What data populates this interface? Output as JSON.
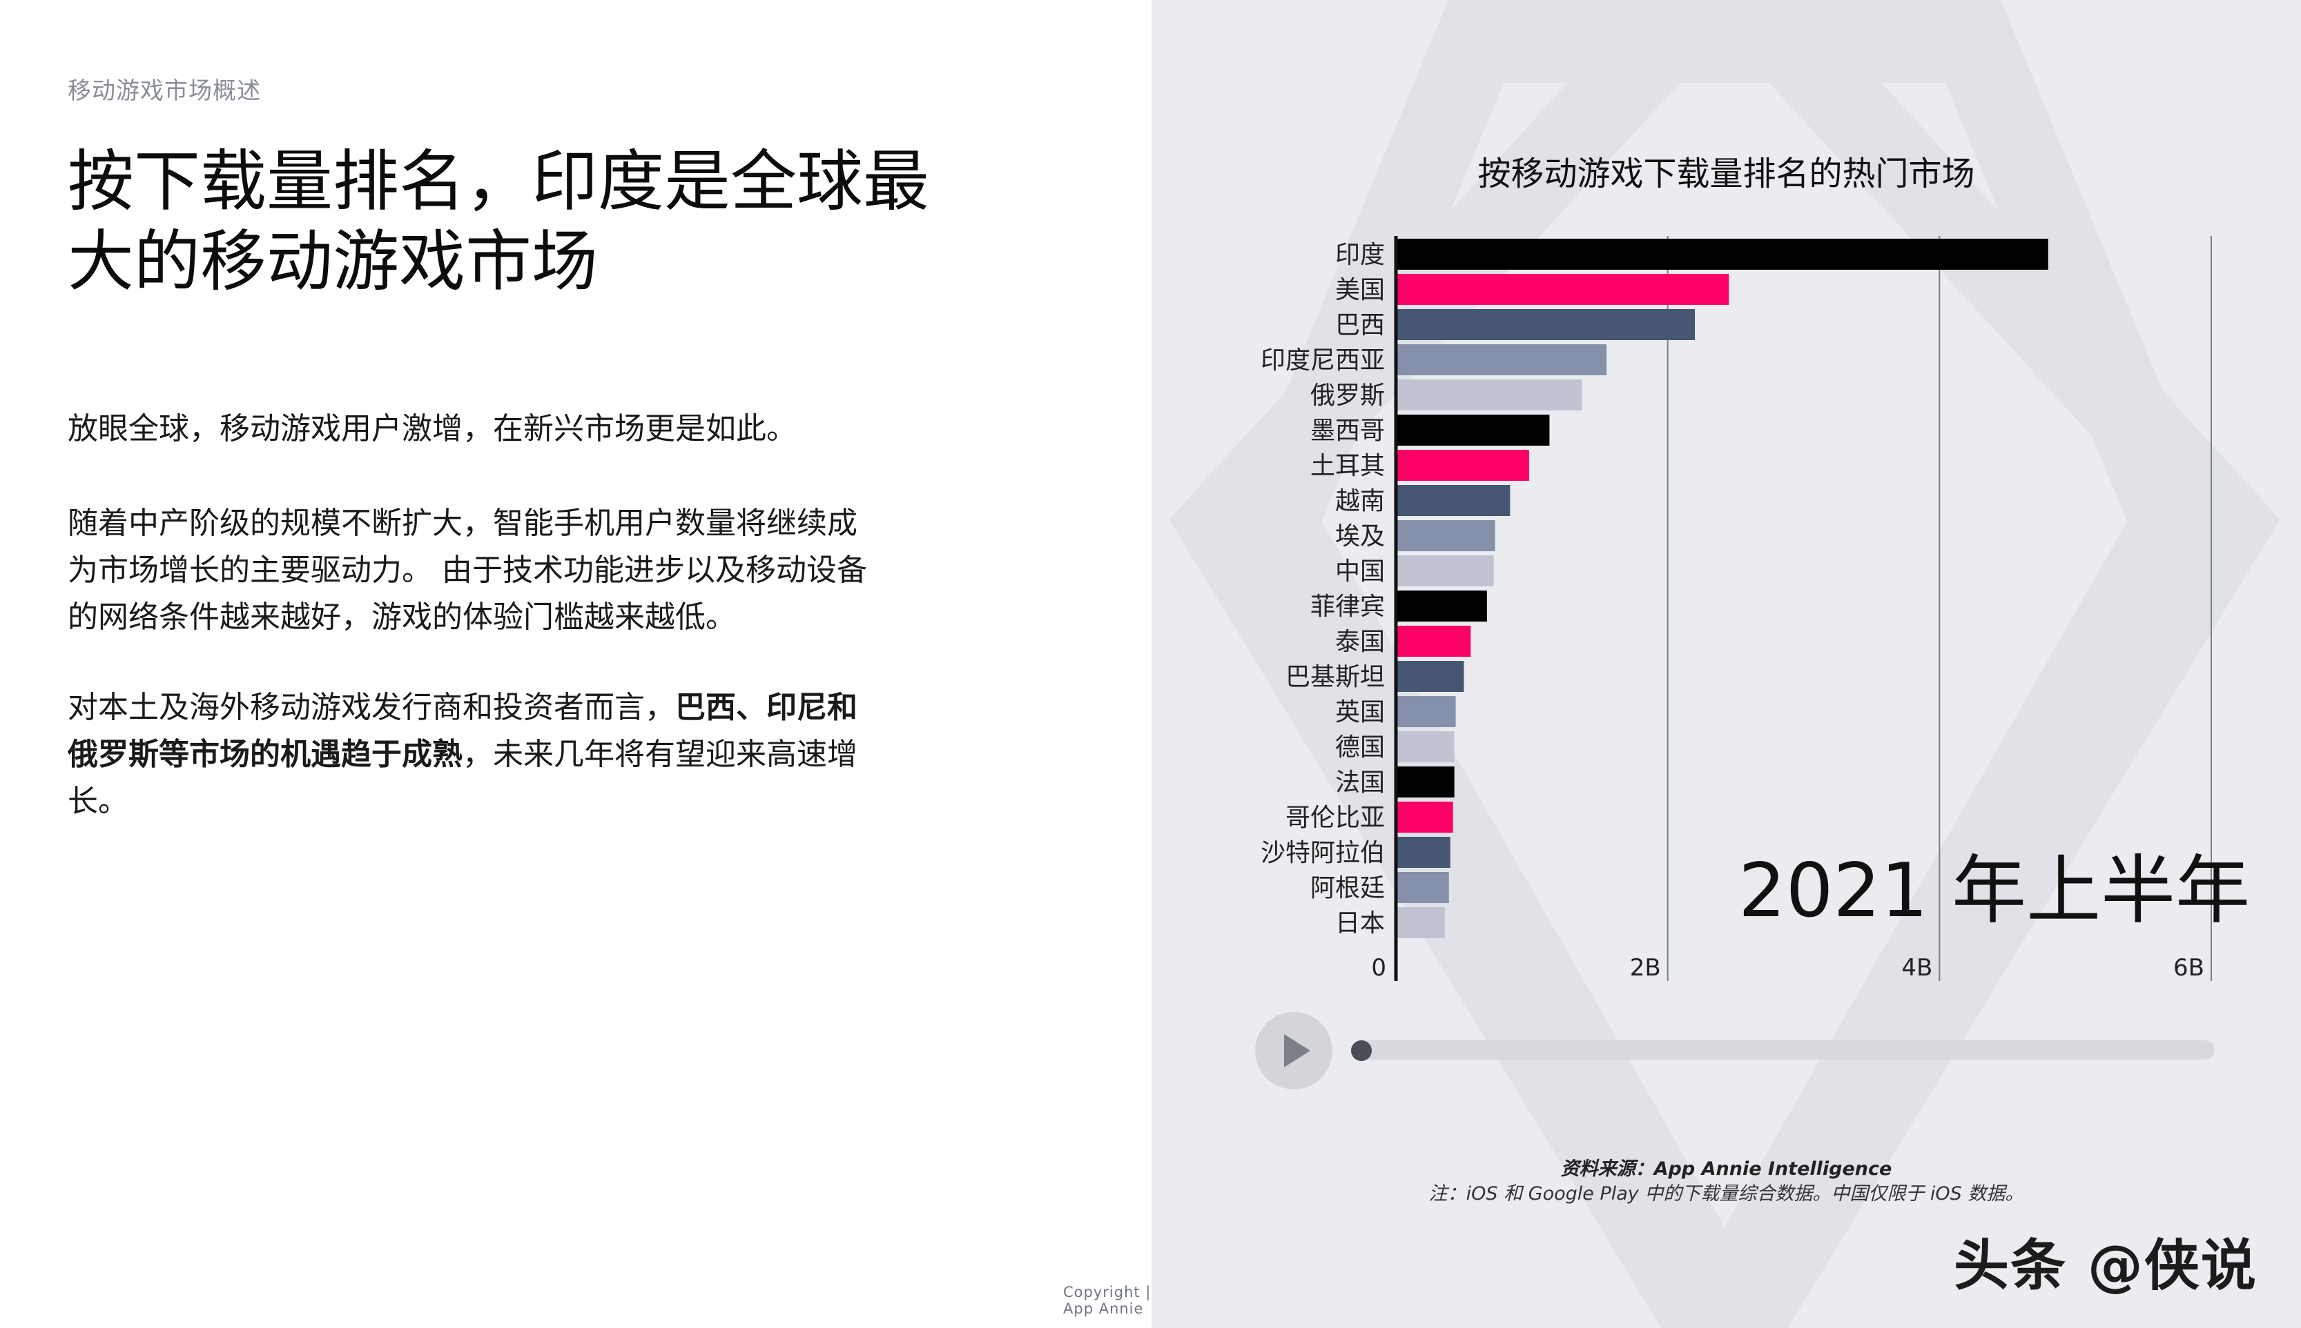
{
  "section_label": "移动游戏市场概述",
  "headline": "按下载量排名，印度是全球最大的移动游戏市场",
  "paragraphs": {
    "p1": "放眼全球，移动游戏用户激增，在新兴市场更是如此。",
    "p2": "随着中产阶级的规模不断扩大，智能手机用户数量将继续成为市场增长的主要驱动力。 由于技术功能进步以及移动设备的网络条件越来越好，游戏的体验门槛越来越低。",
    "p3_pre": "对本土及海外移动游戏发行商和投资者而言，",
    "p3_bold": "巴西、印尼和俄罗斯等市场的机遇趋于成熟",
    "p3_post": "，未来几年将有望迎来高速增长。"
  },
  "period_label": "2021 年上半年",
  "source_text": "资料来源：App Annie Intelligence",
  "note_text": "注：iOS 和 Google Play 中的下载量综合数据。中国仅限于 iOS 数据。",
  "copyright": "Copyright | App Annie",
  "watermark": "头条 @侠说",
  "colors": {
    "black": "#000000",
    "pink": "#ff0066",
    "navy": "#475673",
    "slate": "#8590aa",
    "light": "#bfc3d2",
    "panel_bg": "#ebecf0"
  },
  "chart_data": {
    "type": "bar",
    "orientation": "horizontal",
    "title": "按移动游戏下载量排名的热门市场",
    "unit": "downloads",
    "categories": [
      "印度",
      "美国",
      "巴西",
      "印度尼西亚",
      "俄罗斯",
      "墨西哥",
      "土耳其",
      "越南",
      "埃及",
      "中国",
      "菲律宾",
      "泰国",
      "巴基斯坦",
      "英国",
      "德国",
      "法国",
      "哥伦比亚",
      "沙特阿拉伯",
      "阿根廷",
      "日本"
    ],
    "values": [
      4.8,
      2.45,
      2.2,
      1.55,
      1.37,
      1.13,
      0.98,
      0.84,
      0.73,
      0.72,
      0.67,
      0.55,
      0.5,
      0.44,
      0.43,
      0.43,
      0.42,
      0.4,
      0.39,
      0.36
    ],
    "bar_colors": [
      "#000000",
      "#ff0066",
      "#475673",
      "#8590aa",
      "#bfc3d2",
      "#000000",
      "#ff0066",
      "#475673",
      "#8590aa",
      "#bfc3d2",
      "#000000",
      "#ff0066",
      "#475673",
      "#8590aa",
      "#bfc3d2",
      "#000000",
      "#ff0066",
      "#475673",
      "#8590aa",
      "#bfc3d2"
    ],
    "xlim": [
      0,
      6
    ],
    "xticks": [
      0,
      2,
      4,
      6
    ],
    "xtick_labels": [
      "0",
      "2B",
      "4B",
      "6B"
    ],
    "grid": true
  }
}
